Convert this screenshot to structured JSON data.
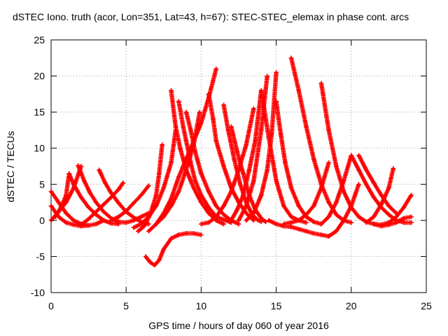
{
  "chart_data": {
    "type": "scatter",
    "title": "dSTEC Iono. truth (acor, Lon=351, Lat=43, h=67): STEC-STEC_elemax in phase cont. arcs",
    "xlabel": "GPS time / hours of day 060 of year 2016",
    "ylabel": "dSTEC  / TECUs",
    "xlim": [
      0,
      25
    ],
    "ylim": [
      -10,
      25
    ],
    "xticks": [
      0,
      5,
      10,
      15,
      20,
      25
    ],
    "yticks": [
      -10,
      -5,
      0,
      5,
      10,
      15,
      20,
      25
    ],
    "grid": true,
    "marker": "+",
    "series_color": "#ff0000",
    "series": [
      {
        "x": [
          0.0,
          0.5,
          1.0,
          1.5,
          2.0,
          2.5,
          3.0,
          3.5
        ],
        "y": [
          4.0,
          2.5,
          1.0,
          0.0,
          -0.5,
          -0.7,
          -0.5,
          0.0
        ]
      },
      {
        "x": [
          0.0,
          0.5,
          1.0,
          1.5,
          2.0
        ],
        "y": [
          0.0,
          1.2,
          2.5,
          4.5,
          7.5
        ]
      },
      {
        "x": [
          0.0,
          0.5,
          1.0,
          1.5,
          2.0,
          2.5
        ],
        "y": [
          2.0,
          0.5,
          -0.3,
          -0.6,
          -0.8,
          -0.7
        ]
      },
      {
        "x": [
          0.3,
          0.7,
          1.0,
          1.2
        ],
        "y": [
          0.5,
          2.0,
          3.5,
          6.5
        ]
      },
      {
        "x": [
          1.2,
          1.5,
          2.0,
          2.5,
          3.0,
          3.5,
          4.0,
          4.5
        ],
        "y": [
          6.5,
          5.0,
          3.2,
          1.8,
          0.8,
          0.0,
          -0.4,
          -0.5
        ]
      },
      {
        "x": [
          1.8,
          2.2,
          2.6,
          3.0,
          3.5,
          4.0,
          4.5,
          5.0,
          5.5,
          6.0,
          6.5
        ],
        "y": [
          7.6,
          5.5,
          3.8,
          2.5,
          1.2,
          0.3,
          -0.2,
          -0.3,
          0.0,
          0.5,
          1.0
        ]
      },
      {
        "x": [
          3.2,
          3.6,
          4.0,
          4.5,
          5.0,
          5.5,
          6.0,
          6.5
        ],
        "y": [
          7.0,
          5.2,
          3.8,
          2.4,
          1.2,
          0.4,
          -0.2,
          -0.5
        ]
      },
      {
        "x": [
          2.0,
          2.5,
          3.0,
          3.5,
          4.0,
          4.5,
          4.8
        ],
        "y": [
          -0.6,
          0.2,
          1.2,
          2.2,
          3.2,
          4.3,
          5.2
        ]
      },
      {
        "x": [
          4.0,
          4.5,
          5.0,
          5.5,
          6.0,
          6.5
        ],
        "y": [
          0.0,
          0.5,
          1.3,
          2.4,
          3.5,
          4.8
        ]
      },
      {
        "x": [
          5.5,
          6.0,
          6.5,
          7.0,
          7.5,
          8.0,
          8.3
        ],
        "y": [
          -1.0,
          -0.5,
          0.5,
          2.0,
          4.5,
          8.0,
          12.5
        ]
      },
      {
        "x": [
          6.3,
          6.6,
          6.9,
          7.2,
          7.5,
          8.0,
          8.5,
          9.0,
          9.5,
          10.0
        ],
        "y": [
          -5.0,
          -5.8,
          -6.2,
          -5.5,
          -4.0,
          -2.5,
          -2.0,
          -1.8,
          -1.8,
          -2.0
        ]
      },
      {
        "x": [
          6.5,
          7.0,
          7.5,
          8.0,
          8.5,
          9.0,
          9.5,
          10.0,
          10.5,
          11.0
        ],
        "y": [
          -1.5,
          -0.5,
          1.0,
          3.0,
          6.0,
          8.5,
          11.0,
          13.5,
          17.0,
          21.0
        ]
      },
      {
        "x": [
          7.0,
          7.5,
          8.0,
          8.5,
          9.0,
          9.5,
          9.9
        ],
        "y": [
          -0.5,
          0.5,
          2.0,
          4.0,
          7.0,
          10.5,
          15.0
        ]
      },
      {
        "x": [
          5.8,
          6.2,
          6.6,
          7.0,
          7.2,
          7.4
        ],
        "y": [
          -1.5,
          -0.8,
          0.8,
          3.5,
          6.5,
          10.5
        ]
      },
      {
        "x": [
          8.0,
          8.3,
          8.6,
          9.0,
          9.5,
          10.0,
          10.5,
          11.0,
          11.5
        ],
        "y": [
          18.0,
          13.0,
          10.0,
          7.0,
          4.5,
          2.5,
          1.0,
          0.0,
          -0.5
        ]
      },
      {
        "x": [
          8.5,
          8.8,
          9.0,
          9.3,
          9.6,
          10.0,
          10.5,
          11.0,
          12.0
        ],
        "y": [
          16.5,
          13.0,
          11.0,
          8.0,
          5.5,
          3.5,
          1.8,
          0.5,
          -0.3
        ]
      },
      {
        "x": [
          9.0,
          9.3,
          9.6,
          10.0,
          10.5,
          11.0,
          11.5,
          12.0,
          12.5
        ],
        "y": [
          15.0,
          12.5,
          9.5,
          6.5,
          4.0,
          2.0,
          0.8,
          0.0,
          -0.5
        ]
      },
      {
        "x": [
          10.0,
          10.5,
          11.0,
          11.5,
          12.0,
          12.5,
          13.0,
          13.5
        ],
        "y": [
          -0.5,
          -0.3,
          0.5,
          2.0,
          4.0,
          7.0,
          10.5,
          15.5
        ]
      },
      {
        "x": [
          10.5,
          10.8,
          11.0,
          11.5,
          12.0,
          12.5,
          13.0,
          13.5
        ],
        "y": [
          17.5,
          14.0,
          11.0,
          7.5,
          4.5,
          2.5,
          1.0,
          0.0
        ]
      },
      {
        "x": [
          11.5,
          11.8,
          12.2,
          12.6,
          13.0,
          13.4,
          13.8,
          14.0
        ],
        "y": [
          16.0,
          12.5,
          8.5,
          5.0,
          2.5,
          0.8,
          0.0,
          -0.2
        ]
      },
      {
        "x": [
          12.0,
          12.4,
          12.8,
          13.2,
          13.6,
          14.0
        ],
        "y": [
          0.0,
          1.5,
          3.5,
          7.0,
          11.0,
          18.0
        ]
      },
      {
        "x": [
          12.0,
          12.4,
          12.8,
          13.2,
          13.6,
          14.0,
          14.3
        ],
        "y": [
          13.0,
          9.5,
          6.5,
          3.5,
          1.5,
          0.3,
          -0.2
        ]
      },
      {
        "x": [
          12.5,
          13.0,
          13.5,
          14.0,
          14.4
        ],
        "y": [
          0.0,
          2.0,
          5.5,
          12.5,
          20.0
        ]
      },
      {
        "x": [
          13.0,
          13.5,
          14.0,
          14.4,
          14.7,
          15.0
        ],
        "y": [
          0.0,
          1.0,
          3.5,
          7.0,
          12.0,
          20.5
        ]
      },
      {
        "x": [
          14.0,
          14.5,
          15.0,
          15.5,
          16.0,
          16.5,
          17.0
        ],
        "y": [
          18.0,
          11.5,
          5.5,
          2.0,
          0.5,
          0.0,
          -0.3
        ]
      },
      {
        "x": [
          15.0,
          15.3,
          15.6,
          16.0,
          16.5,
          17.0,
          17.5,
          18.0
        ],
        "y": [
          16.5,
          12.0,
          8.0,
          4.5,
          2.0,
          0.5,
          -0.2,
          -0.5
        ]
      },
      {
        "x": [
          16.0,
          16.5,
          17.0,
          17.5,
          18.0,
          18.5,
          19.0,
          19.5,
          20.0
        ],
        "y": [
          22.5,
          18.0,
          13.0,
          8.5,
          5.0,
          2.5,
          0.8,
          0.0,
          -0.3
        ]
      },
      {
        "x": [
          14.5,
          15.0,
          15.5,
          16.0,
          16.5,
          17.0,
          17.5,
          18.0,
          18.5
        ],
        "y": [
          0.0,
          -0.5,
          -0.8,
          -0.9,
          -1.2,
          -1.5,
          -1.8,
          -2.0,
          -2.2
        ]
      },
      {
        "x": [
          15.5,
          16.0,
          16.5,
          17.0,
          17.5,
          18.0,
          18.5
        ],
        "y": [
          -0.5,
          -0.3,
          0.0,
          0.8,
          2.0,
          4.5,
          8.0
        ]
      },
      {
        "x": [
          18.0,
          18.5,
          19.0,
          19.5,
          20.0,
          20.5,
          21.0,
          21.5,
          22.0
        ],
        "y": [
          19.0,
          12.5,
          7.5,
          4.0,
          1.8,
          0.5,
          -0.2,
          -0.5,
          -0.6
        ]
      },
      {
        "x": [
          18.0,
          18.5,
          19.0,
          19.5,
          20.0
        ],
        "y": [
          -0.5,
          0.5,
          2.5,
          5.5,
          9.0
        ]
      },
      {
        "x": [
          18.5,
          19.0,
          19.5,
          20.0,
          20.5
        ],
        "y": [
          -2.2,
          -1.5,
          0.0,
          2.0,
          5.0
        ]
      },
      {
        "x": [
          20.0,
          20.5,
          21.0,
          21.5,
          22.0,
          22.5,
          23.0,
          23.5,
          24.0
        ],
        "y": [
          9.0,
          7.0,
          5.0,
          3.2,
          1.8,
          0.8,
          0.0,
          -0.3,
          -0.3
        ]
      },
      {
        "x": [
          20.5,
          21.0,
          21.5,
          22.0,
          22.5,
          23.0
        ],
        "y": [
          9.0,
          7.0,
          5.2,
          3.5,
          2.0,
          1.0
        ]
      },
      {
        "x": [
          21.0,
          21.5,
          22.0,
          22.5,
          22.8
        ],
        "y": [
          -0.3,
          0.5,
          2.2,
          4.5,
          7.2
        ]
      },
      {
        "x": [
          21.5,
          22.0,
          22.5,
          23.0,
          23.5,
          24.0
        ],
        "y": [
          -0.5,
          -0.8,
          -0.6,
          -0.3,
          0.3,
          0.5
        ]
      },
      {
        "x": [
          22.0,
          22.5,
          23.0,
          23.5,
          24.0
        ],
        "y": [
          -0.6,
          -0.3,
          0.5,
          1.8,
          3.5
        ]
      }
    ]
  }
}
